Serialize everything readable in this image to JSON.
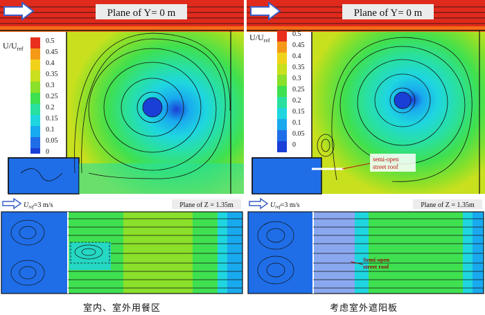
{
  "panels": {
    "left": {
      "plane_y_label": "Plane of Y= 0 m",
      "legend_title": "U/U",
      "legend_title_sub": "ref",
      "legend_ticks": [
        "0.5",
        "0.45",
        "0.4",
        "0.35",
        "0.3",
        "0.25",
        "0.2",
        "0.15",
        "0.1",
        "0.05",
        "0"
      ],
      "uref_label": "U",
      "uref_sub": "ref",
      "uref_value": "=3 m/s",
      "plane_z_label": "Plane of Z = 1.35m",
      "caption": "室内、室外用餐区"
    },
    "right": {
      "plane_y_label": "Plane of Y= 0 m",
      "legend_title": "U/U",
      "legend_title_sub": "ref",
      "legend_ticks": [
        "0.5",
        "0.45",
        "0.4",
        "0.35",
        "0.3",
        "0.25",
        "0.2",
        "0.15",
        "0.1",
        "0.05",
        "0"
      ],
      "annotation_top": "semi-open\nstreet roof",
      "uref_label": "U",
      "uref_sub": "ref",
      "uref_value": "=3 m/s",
      "plane_z_label": "Plane of Z = 1.35m",
      "annotation_bottom": "Semi-open\nstreet roof",
      "caption": "考虑室外遮阳板"
    }
  },
  "colors": {
    "c0": "#1a3fd6",
    "c005": "#1f6ee8",
    "c01": "#19a9ef",
    "c015": "#1fd6e0",
    "c02": "#29e0a0",
    "c025": "#3fe050",
    "c03": "#8ae02a",
    "c035": "#c8e01e",
    "c04": "#f0d21a",
    "c045": "#f59a18",
    "c05": "#e8301c"
  }
}
